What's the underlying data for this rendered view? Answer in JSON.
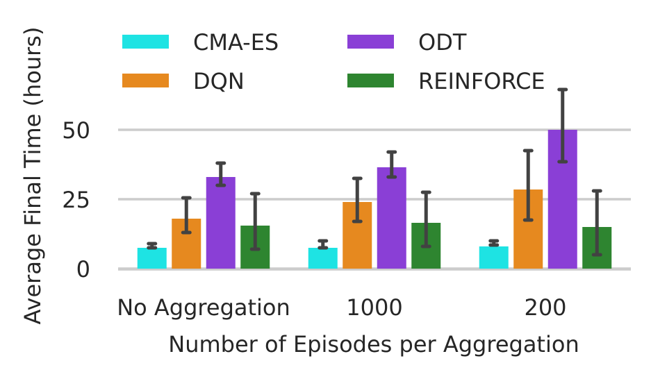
{
  "chart_data": {
    "type": "bar",
    "title": "",
    "xlabel": "Number of Episodes per Aggregation",
    "ylabel": "Average Final Time (hours)",
    "categories": [
      "No Aggregation",
      "1000",
      "200"
    ],
    "ylim": [
      0,
      65
    ],
    "yticks": [
      0,
      25,
      50
    ],
    "grid": true,
    "legend_position": "top",
    "series": [
      {
        "name": "CMA-ES",
        "color": "#1ee3e3",
        "values": [
          7.5,
          7.5,
          8.0
        ],
        "err_low": [
          7.5,
          7.5,
          8.5
        ],
        "err_high": [
          9.0,
          10.0,
          10.0
        ]
      },
      {
        "name": "DQN",
        "color": "#e6891f",
        "values": [
          18,
          24,
          28.5
        ],
        "err_low": [
          13,
          17,
          17.5
        ],
        "err_high": [
          25.5,
          32.5,
          42.5
        ]
      },
      {
        "name": "ODT",
        "color": "#8a3fd6",
        "values": [
          33,
          36.5,
          50
        ],
        "err_low": [
          30,
          33,
          38.5
        ],
        "err_high": [
          38,
          42,
          64.5
        ]
      },
      {
        "name": "REINFORCE",
        "color": "#2e8530",
        "values": [
          15.5,
          16.5,
          15
        ],
        "err_low": [
          7,
          8,
          5
        ],
        "err_high": [
          27,
          27.5,
          28
        ]
      }
    ]
  }
}
